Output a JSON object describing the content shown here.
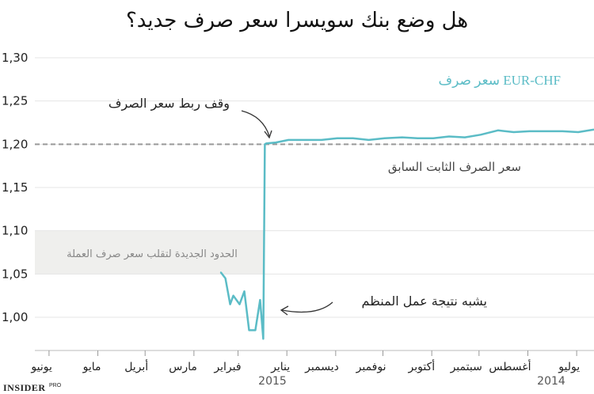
{
  "chart_data": {
    "type": "line",
    "title": "هل وضع بنك سويسرا سعر صرف جديد؟",
    "ylim": [
      0.97,
      1.3
    ],
    "y_ticks": [
      "1,30",
      "1,25",
      "1,20",
      "1,15",
      "1,10",
      "1,05",
      "1,00"
    ],
    "x_axis_reversed": true,
    "x_ticks": [
      "يونيو",
      "مايو",
      "أبريل",
      "مارس",
      "فبراير",
      "يناير",
      "ديسمبر",
      "نوفمبر",
      "أكتوبر",
      "سبتمبر",
      "أغسطس",
      "يوليو"
    ],
    "year_labels": [
      "2015",
      "2014"
    ],
    "grid": true,
    "series": [
      {
        "name": "سعر صرف EUR-CHF",
        "color": "#5bbcc6",
        "x": [
          "2014-06-20",
          "2014-06-30",
          "2014-07-10",
          "2014-07-20",
          "2014-07-31",
          "2014-08-10",
          "2014-08-20",
          "2014-08-31",
          "2014-09-10",
          "2014-09-20",
          "2014-09-30",
          "2014-10-10",
          "2014-10-20",
          "2014-10-31",
          "2014-11-10",
          "2014-11-20",
          "2014-11-30",
          "2014-12-10",
          "2014-12-20",
          "2014-12-31",
          "2015-01-08",
          "2015-01-14",
          "2015-01-15",
          "2015-01-16",
          "2015-01-18",
          "2015-01-21",
          "2015-01-25",
          "2015-01-28",
          "2015-01-31",
          "2015-02-04",
          "2015-02-06",
          "2015-02-09",
          "2015-02-12"
        ],
        "values": [
          1.217,
          1.214,
          1.215,
          1.215,
          1.215,
          1.214,
          1.216,
          1.211,
          1.208,
          1.209,
          1.207,
          1.207,
          1.208,
          1.207,
          1.205,
          1.207,
          1.207,
          1.205,
          1.205,
          1.205,
          1.202,
          1.201,
          1.2,
          0.975,
          1.02,
          0.985,
          0.985,
          1.03,
          1.015,
          1.025,
          1.015,
          1.045,
          1.052
        ]
      },
      {
        "name": "سعر الصرف الثابت السابق",
        "color": "#999999",
        "dashed": true,
        "value": 1.2
      }
    ],
    "band": {
      "label": "الحدود الجديدة لتقلب سعر صرف العملة",
      "ymin": 1.05,
      "ymax": 1.1,
      "x_start": "2015-06-30",
      "x_end": "2015-01-15",
      "color": "#efefed"
    },
    "annotations": [
      {
        "text": "وقف ربط سعر الصرف",
        "x": "2015-01-15",
        "y": 1.2
      },
      {
        "text": "يشبه نتيجة عمل المنظم",
        "x": "2015-01-15",
        "y": 1.01
      }
    ],
    "source": {
      "brand": "INSIDER",
      "suffix": "PRO"
    }
  }
}
